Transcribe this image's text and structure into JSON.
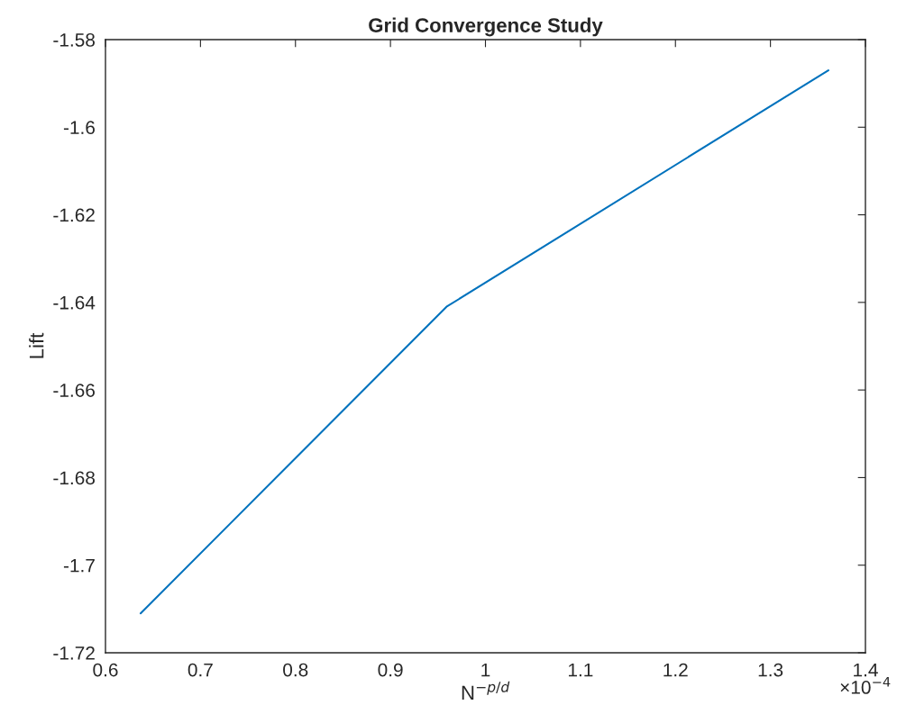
{
  "chart_data": {
    "type": "line",
    "title": "Grid Convergence Study",
    "xlabel": "N$^{−p/d}$",
    "ylabel": "Lift",
    "x": [
      0.637,
      0.959,
      1.361
    ],
    "series": [
      {
        "color": "#0072bd",
        "values": [
          -1.711,
          -1.641,
          -1.587
        ]
      }
    ],
    "xlim": [
      0.6,
      1.4
    ],
    "xticks": [
      0.6,
      0.7,
      0.8,
      0.9,
      1,
      1.1,
      1.2,
      1.3,
      1.4
    ],
    "ylim": [
      -1.72,
      -1.58
    ],
    "yticks": [
      -1.72,
      -1.7,
      -1.68,
      -1.66,
      -1.64,
      -1.62,
      -1.6,
      -1.58
    ],
    "annotations": [
      "×10$^{−4}$"
    ],
    "grid": false,
    "legend": false,
    "marker": "none",
    "line_style": "solid"
  }
}
